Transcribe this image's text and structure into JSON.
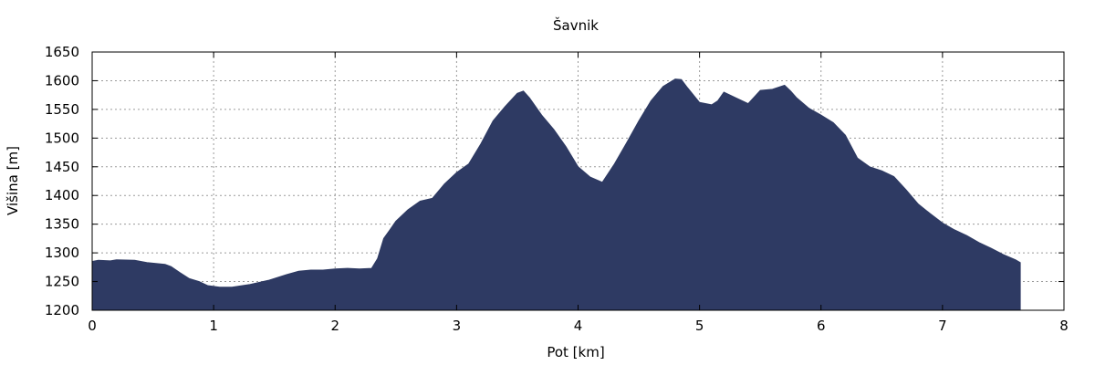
{
  "chart_data": {
    "type": "area",
    "title": "Šavnik",
    "xlabel": "Pot [km]",
    "ylabel": "Višina [m]",
    "xlim": [
      0,
      8
    ],
    "ylim": [
      1200,
      1650
    ],
    "xticks": [
      0,
      1,
      2,
      3,
      4,
      5,
      6,
      7,
      8
    ],
    "yticks": [
      1200,
      1250,
      1300,
      1350,
      1400,
      1450,
      1500,
      1550,
      1600,
      1650
    ],
    "grid": true,
    "fill_color": "#2e3a63",
    "series": [
      {
        "x": [
          0,
          0.05,
          0.15,
          0.2,
          0.35,
          0.45,
          0.6,
          0.65,
          0.72,
          0.8,
          0.88,
          0.95,
          1.05,
          1.15,
          1.3,
          1.45,
          1.6,
          1.7,
          1.8,
          1.9,
          2.0,
          2.1,
          2.2,
          2.3,
          2.35,
          2.4,
          2.45,
          2.5,
          2.6,
          2.7,
          2.8,
          2.9,
          3.0,
          3.1,
          3.2,
          3.3,
          3.4,
          3.5,
          3.55,
          3.6,
          3.7,
          3.8,
          3.9,
          4.0,
          4.1,
          4.2,
          4.3,
          4.4,
          4.5,
          4.6,
          4.7,
          4.8,
          4.85,
          4.9,
          5.0,
          5.1,
          5.15,
          5.2,
          5.3,
          5.4,
          5.5,
          5.6,
          5.7,
          5.75,
          5.8,
          5.9,
          6.0,
          6.1,
          6.2,
          6.3,
          6.4,
          6.5,
          6.6,
          6.7,
          6.8,
          6.9,
          7.0,
          7.1,
          7.2,
          7.3,
          7.4,
          7.5,
          7.6,
          7.64
        ],
        "y": [
          1285,
          1287,
          1286,
          1288,
          1287,
          1283,
          1280,
          1276,
          1266,
          1255,
          1250,
          1243,
          1240,
          1240,
          1245,
          1252,
          1262,
          1268,
          1270,
          1270,
          1272,
          1273,
          1272,
          1273,
          1290,
          1325,
          1340,
          1355,
          1375,
          1390,
          1395,
          1420,
          1440,
          1455,
          1490,
          1530,
          1555,
          1578,
          1582,
          1570,
          1540,
          1515,
          1485,
          1450,
          1432,
          1423,
          1455,
          1492,
          1530,
          1565,
          1590,
          1603,
          1602,
          1588,
          1562,
          1558,
          1565,
          1580,
          1570,
          1560,
          1583,
          1585,
          1592,
          1582,
          1570,
          1552,
          1540,
          1527,
          1505,
          1465,
          1450,
          1443,
          1433,
          1410,
          1385,
          1368,
          1352,
          1340,
          1330,
          1318,
          1308,
          1297,
          1288,
          1283
        ]
      }
    ]
  }
}
